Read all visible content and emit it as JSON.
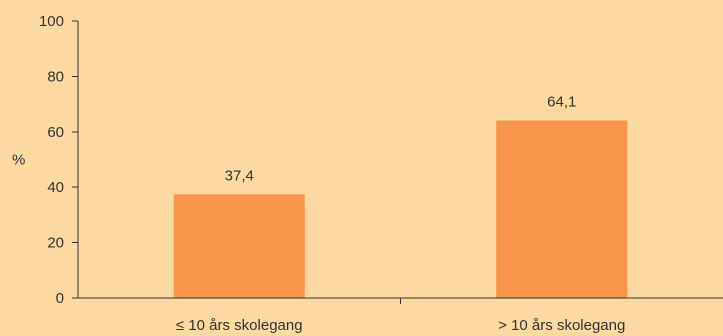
{
  "chart_data": {
    "type": "bar",
    "title": "",
    "xlabel": "",
    "ylabel": "%",
    "ylim": [
      0,
      100
    ],
    "yticks": [
      0,
      20,
      40,
      60,
      80,
      100
    ],
    "categories": [
      "≤ 10 års skolegang",
      "> 10 års skolegang"
    ],
    "values": [
      37.4,
      64.1
    ],
    "value_labels": [
      "37,4",
      "64,1"
    ],
    "grid": false,
    "legend": "none"
  },
  "colors": {
    "background": "#fcd9a0",
    "bar": "#f7964a",
    "axis": "#333333"
  }
}
